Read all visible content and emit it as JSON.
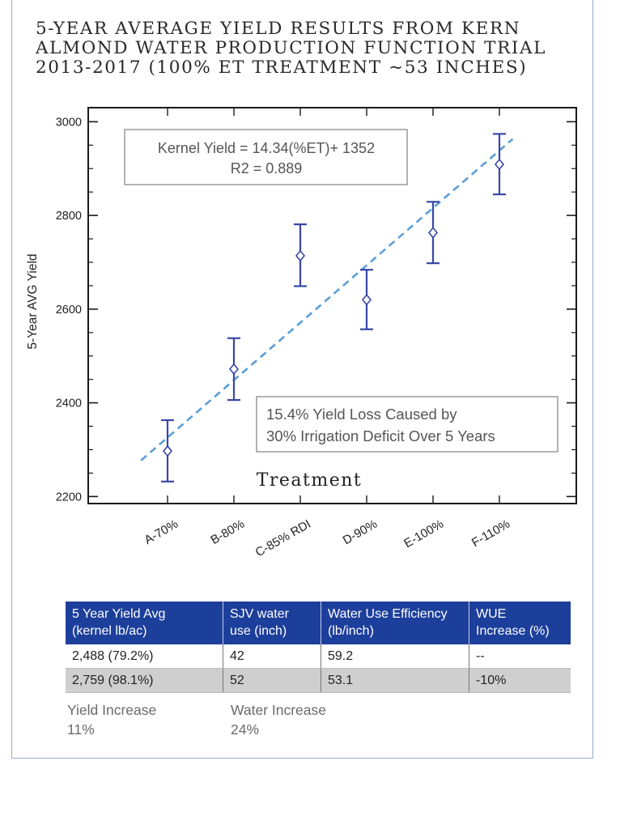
{
  "title": "5-YEAR AVERAGE YIELD RESULTS FROM KERN ALMOND WATER PRODUCTION FUNCTION TRIAL 2013-2017 (100% ET TREATMENT ~53 INCHES)",
  "chart_data": {
    "type": "scatter",
    "ylabel": "5-Year AVG Yield",
    "xlabel": "Treatment",
    "categories": [
      "A-70%",
      "B-80%",
      "C-85% RDI",
      "D-90%",
      "E-100%",
      "F-110%"
    ],
    "values": [
      2297,
      2472,
      2714,
      2620,
      2763,
      2909
    ],
    "err_low": [
      2232,
      2406,
      2649,
      2557,
      2698,
      2845
    ],
    "err_high": [
      2363,
      2538,
      2781,
      2684,
      2829,
      2974
    ],
    "ylim": [
      2185,
      3030
    ],
    "yticks": [
      2200,
      2400,
      2600,
      2800,
      3000
    ],
    "trendline": {
      "x_start": 0.6,
      "x_end": 6.2,
      "y_start": 2277,
      "y_end": 2963,
      "color": "#5a9fd9"
    },
    "marker_color": "#3947a6",
    "annotations": [
      {
        "lines": [
          "Kernel Yield = 14.34(%ET)+ 1352",
          "R2 = 0.889"
        ]
      },
      {
        "lines": [
          "15.4% Yield Loss Caused by",
          "30% Irrigation Deficit Over 5 Years"
        ]
      }
    ]
  },
  "table": {
    "headers": [
      [
        "5 Year Yield Avg",
        "(kernel lb/ac)"
      ],
      [
        "SJV water",
        "use (inch)"
      ],
      [
        "Water Use Efficiency",
        "(lb/inch)"
      ],
      [
        "WUE",
        "Increase (%)"
      ]
    ],
    "rows": [
      [
        "2,488 (79.2%)",
        "42",
        "59.2",
        "--"
      ],
      [
        "2,759 (98.1%)",
        "52",
        "53.1",
        "-10%"
      ]
    ]
  },
  "summary": {
    "yield_increase_label": "Yield Increase",
    "yield_increase_value": "11%",
    "water_increase_label": "Water Increase",
    "water_increase_value": "24%"
  }
}
